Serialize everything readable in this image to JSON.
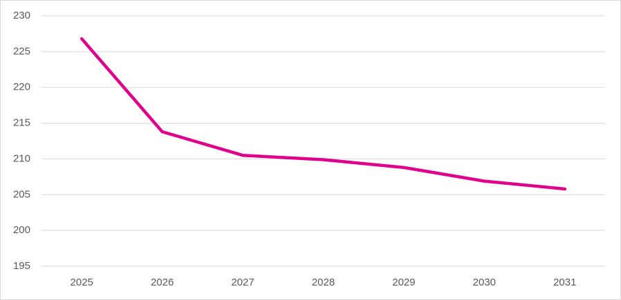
{
  "chart_data": {
    "type": "line",
    "categories": [
      "2025",
      "2026",
      "2027",
      "2028",
      "2029",
      "2030",
      "2031"
    ],
    "series": [
      {
        "color": "#e0008c",
        "values": [
          226.8,
          213.8,
          210.5,
          209.9,
          208.8,
          206.9,
          205.8
        ]
      }
    ],
    "ylim": [
      195,
      230
    ],
    "yticks": [
      195,
      200,
      205,
      210,
      215,
      220,
      225,
      230
    ],
    "grid": true
  }
}
